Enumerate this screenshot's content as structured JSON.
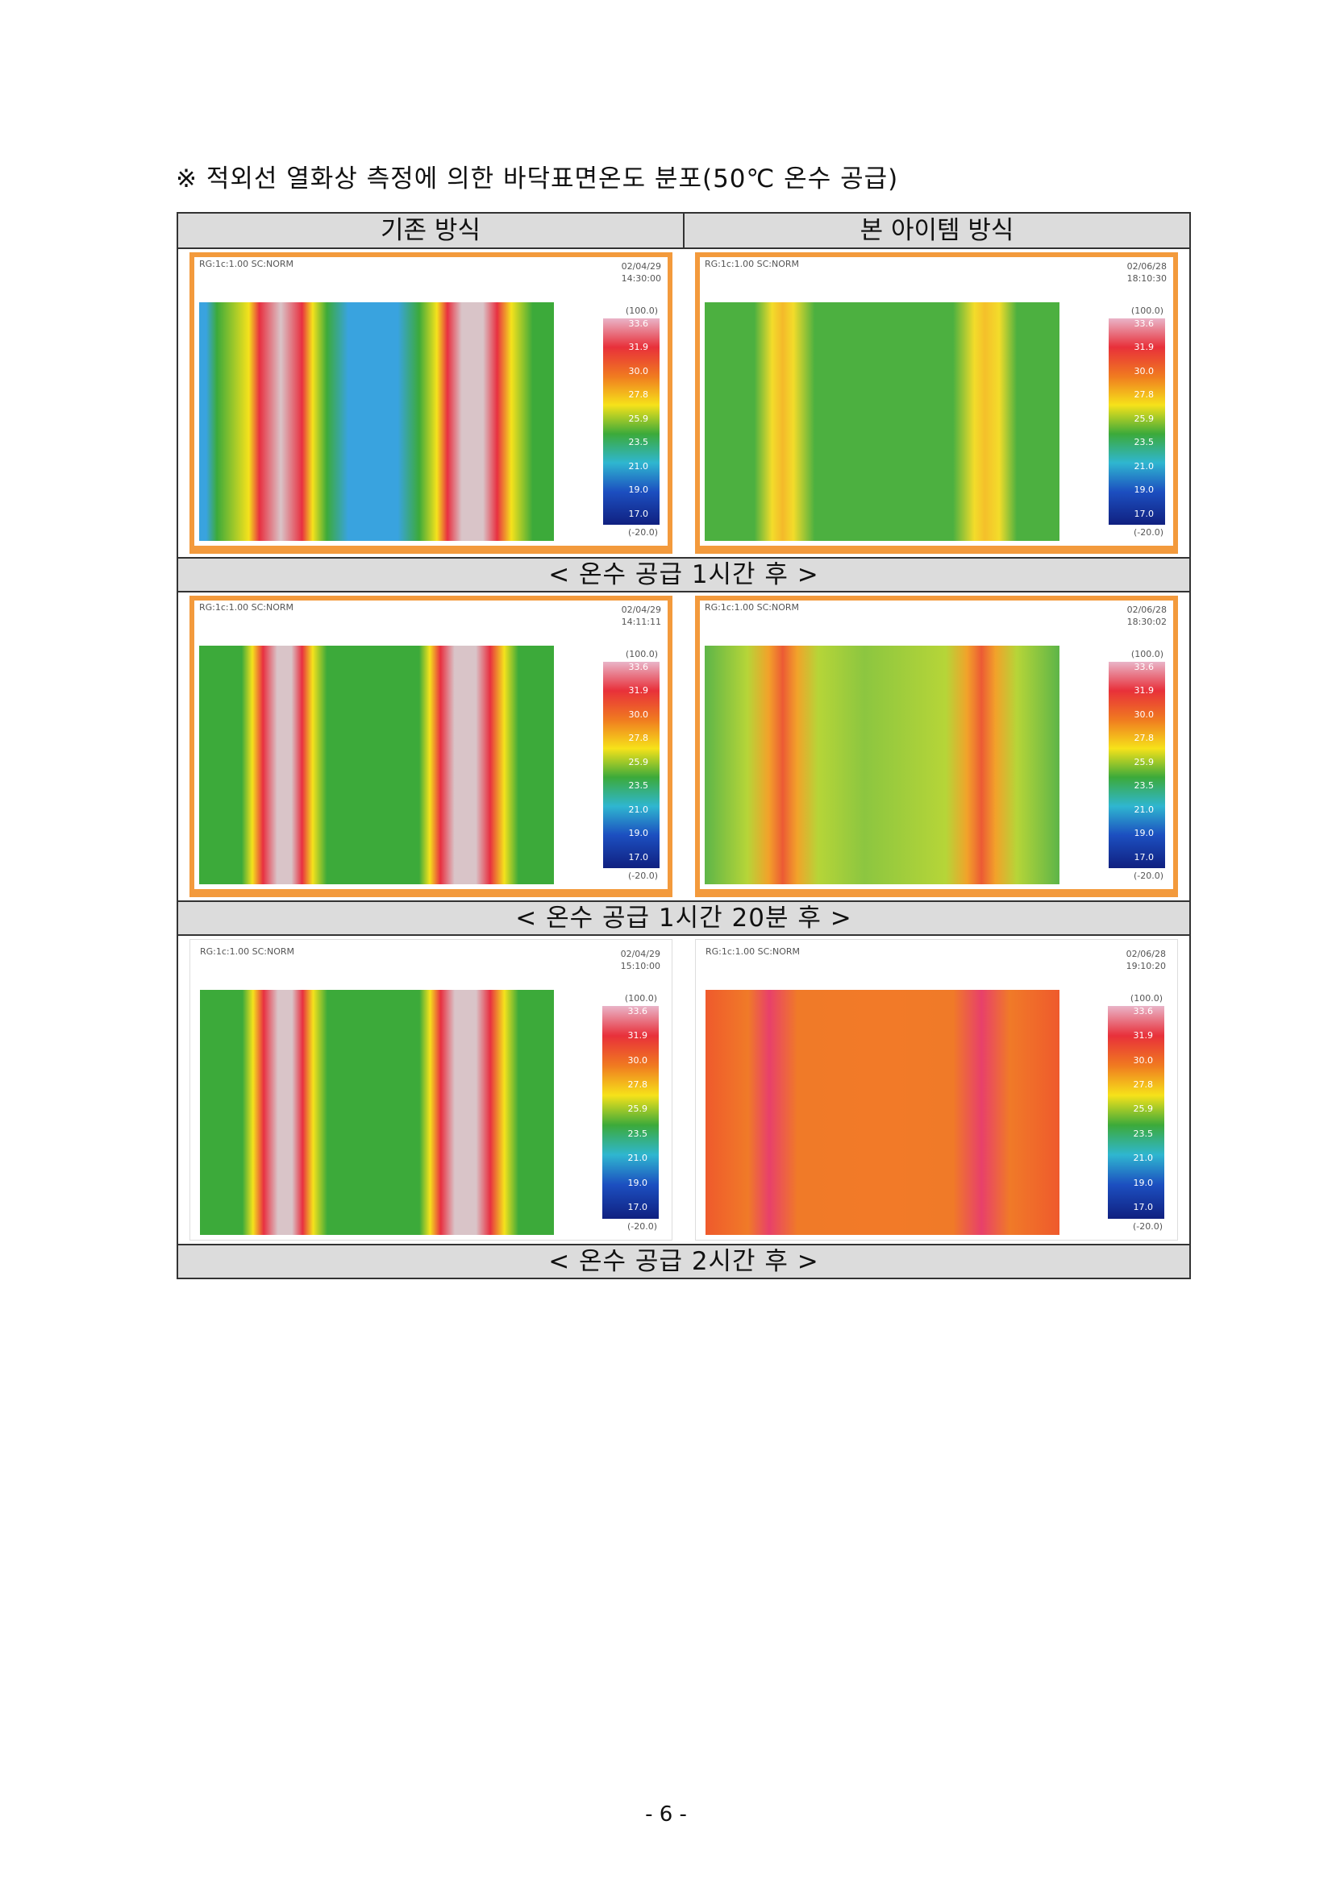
{
  "title": "※ 적외선 열화상 측정에 의한 바닥표면온도 분포(50℃ 온수 공급)",
  "table": {
    "headers": [
      "기존 방식",
      "본 아이템 방식"
    ],
    "rows": [
      {
        "images": [
          {
            "info": "RG:1c:1.00 SC:NORM",
            "date": "02/04/29",
            "time": "14:30:00",
            "max": "(100.0)",
            "min": "(-20.0)",
            "scale": [
              "33.6",
              "31.9",
              "30.0",
              "27.8",
              "25.9",
              "23.5",
              "21.0",
              "19.0",
              "17.0"
            ]
          },
          {
            "info": "RG:1c:1.00 SC:NORM",
            "date": "02/06/28",
            "time": "18:10:30",
            "max": "(100.0)",
            "min": "(-20.0)",
            "scale": [
              "33.6",
              "31.9",
              "30.0",
              "27.8",
              "25.9",
              "23.5",
              "21.0",
              "19.0",
              "17.0"
            ]
          }
        ],
        "caption": "< 온수 공급 1시간 후 >"
      },
      {
        "images": [
          {
            "info": "RG:1c:1.00 SC:NORM",
            "date": "02/04/29",
            "time": "14:11:11",
            "max": "(100.0)",
            "min": "(-20.0)",
            "scale": [
              "33.6",
              "31.9",
              "30.0",
              "27.8",
              "25.9",
              "23.5",
              "21.0",
              "19.0",
              "17.0"
            ]
          },
          {
            "info": "RG:1c:1.00 SC:NORM",
            "date": "02/06/28",
            "time": "18:30:02",
            "max": "(100.0)",
            "min": "(-20.0)",
            "scale": [
              "33.6",
              "31.9",
              "30.0",
              "27.8",
              "25.9",
              "23.5",
              "21.0",
              "19.0",
              "17.0"
            ]
          }
        ],
        "caption": "< 온수 공급 1시간 20분 후 >"
      },
      {
        "images": [
          {
            "info": "RG:1c:1.00 SC:NORM",
            "date": "02/04/29",
            "time": "15:10:00",
            "max": "(100.0)",
            "min": "(-20.0)",
            "scale": [
              "33.6",
              "31.9",
              "30.0",
              "27.8",
              "25.9",
              "23.5",
              "21.0",
              "19.0",
              "17.0"
            ]
          },
          {
            "info": "RG:1c:1.00 SC:NORM",
            "date": "02/06/28",
            "time": "19:10:20",
            "max": "(100.0)",
            "min": "(-20.0)",
            "scale": [
              "33.6",
              "31.9",
              "30.0",
              "27.8",
              "25.9",
              "23.5",
              "21.0",
              "19.0",
              "17.0"
            ]
          }
        ],
        "caption": "< 온수 공급 2시간 후 >"
      }
    ]
  },
  "page_number": "- 6 -"
}
